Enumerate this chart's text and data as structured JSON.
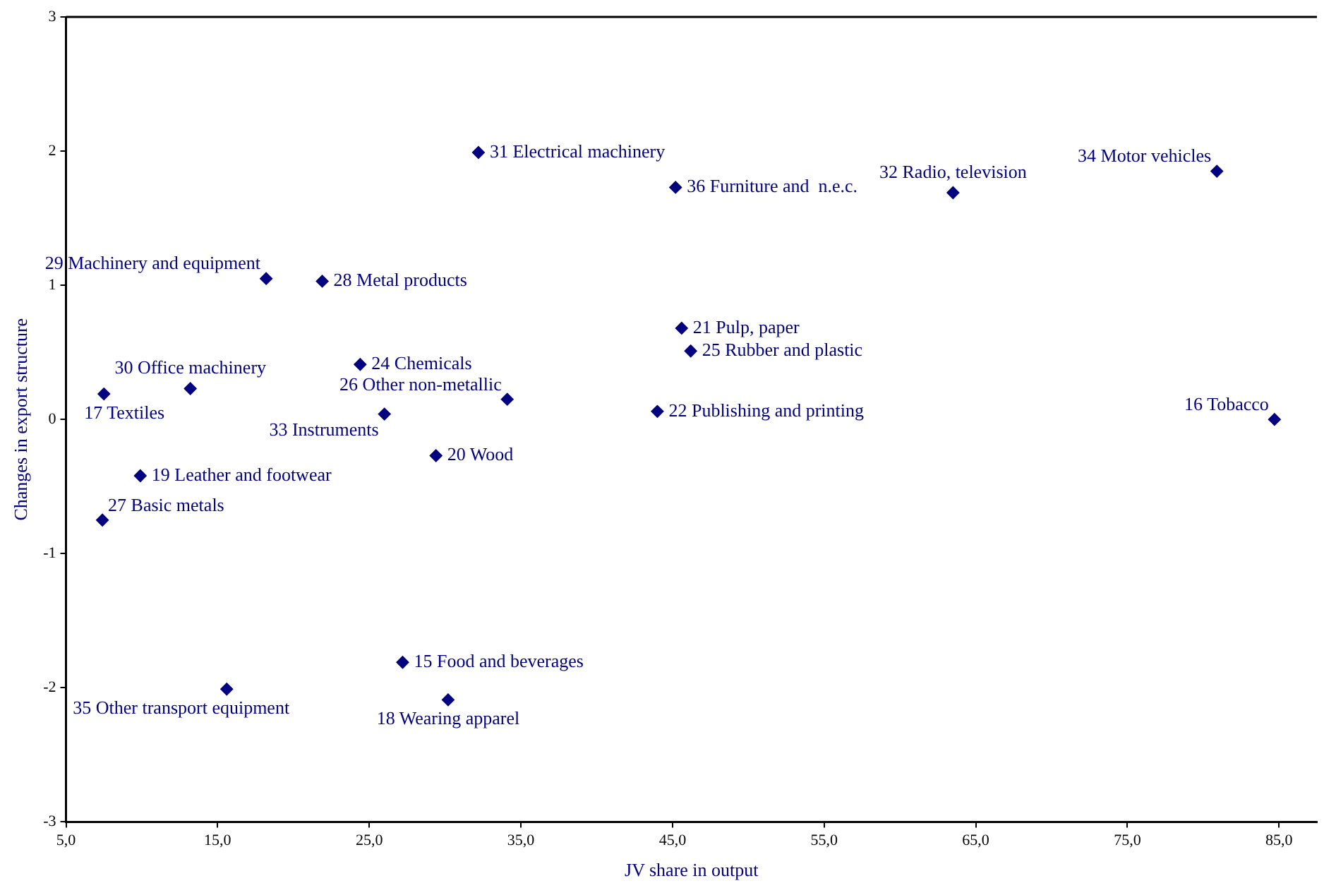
{
  "chart_data": {
    "type": "scatter",
    "xlabel": "JV share in output",
    "ylabel": "Changes in export structure",
    "marker": "diamond",
    "grid": false,
    "legend": false,
    "xlim": [
      5,
      87.5
    ],
    "xticks": [
      {
        "value": 5,
        "label": "5,0"
      },
      {
        "value": 15,
        "label": "15,0"
      },
      {
        "value": 25,
        "label": "25,0"
      },
      {
        "value": 35,
        "label": "35,0"
      },
      {
        "value": 45,
        "label": "45,0"
      },
      {
        "value": 55,
        "label": "55,0"
      },
      {
        "value": 65,
        "label": "65,0"
      },
      {
        "value": 75,
        "label": "75,0"
      },
      {
        "value": 85,
        "label": "85,0"
      }
    ],
    "ylim": [
      -3,
      3
    ],
    "yticks": [
      -3,
      -2,
      -1,
      0,
      1,
      2,
      3
    ],
    "series": [
      {
        "color": "#000080",
        "x": [
          32.2,
          45.2,
          63.5,
          80.9,
          18.2,
          21.9,
          45.6,
          46.2,
          24.4,
          34.1,
          44.0,
          84.7,
          13.2,
          7.5,
          26.0,
          29.4,
          9.9,
          7.4,
          27.2,
          15.6,
          30.2
        ],
        "values": [
          1.99,
          1.73,
          1.69,
          1.85,
          1.05,
          1.03,
          0.68,
          0.51,
          0.41,
          0.15,
          0.06,
          0.0,
          0.23,
          0.19,
          0.04,
          -0.27,
          -0.42,
          -0.75,
          -1.81,
          -2.01,
          -2.09
        ]
      }
    ],
    "annotations": [
      {
        "text": "31 Electrical machinery",
        "x": 32.2,
        "y": 1.99
      },
      {
        "text": "36 Furniture and  n.e.c.",
        "x": 45.2,
        "y": 1.73
      },
      {
        "text": "32 Radio, television",
        "x": 63.5,
        "y": 1.69
      },
      {
        "text": "34 Motor vehicles",
        "x": 80.9,
        "y": 1.85
      },
      {
        "text": "29 Machinery and equipment",
        "x": 18.2,
        "y": 1.05
      },
      {
        "text": "28 Metal products",
        "x": 21.9,
        "y": 1.03
      },
      {
        "text": "21 Pulp, paper",
        "x": 45.6,
        "y": 0.68
      },
      {
        "text": "25 Rubber and plastic",
        "x": 46.2,
        "y": 0.51
      },
      {
        "text": "24 Chemicals",
        "x": 24.4,
        "y": 0.41
      },
      {
        "text": "26 Other non-metallic",
        "x": 34.1,
        "y": 0.15
      },
      {
        "text": "22 Publishing and printing",
        "x": 44.0,
        "y": 0.06
      },
      {
        "text": "16 Tobacco",
        "x": 84.7,
        "y": 0.0
      },
      {
        "text": "30 Office machinery",
        "x": 13.2,
        "y": 0.23
      },
      {
        "text": "17 Textiles",
        "x": 7.5,
        "y": 0.19
      },
      {
        "text": "33 Instruments",
        "x": 26.0,
        "y": 0.04
      },
      {
        "text": "20 Wood",
        "x": 29.4,
        "y": -0.27
      },
      {
        "text": "19 Leather and footwear",
        "x": 9.9,
        "y": -0.42
      },
      {
        "text": "27 Basic metals",
        "x": 7.4,
        "y": -0.75
      },
      {
        "text": "15 Food and beverages",
        "x": 27.2,
        "y": -1.81
      },
      {
        "text": "35 Other transport equipment",
        "x": 15.6,
        "y": -2.01
      },
      {
        "text": "18 Wearing apparel",
        "x": 30.2,
        "y": -2.09
      }
    ]
  }
}
